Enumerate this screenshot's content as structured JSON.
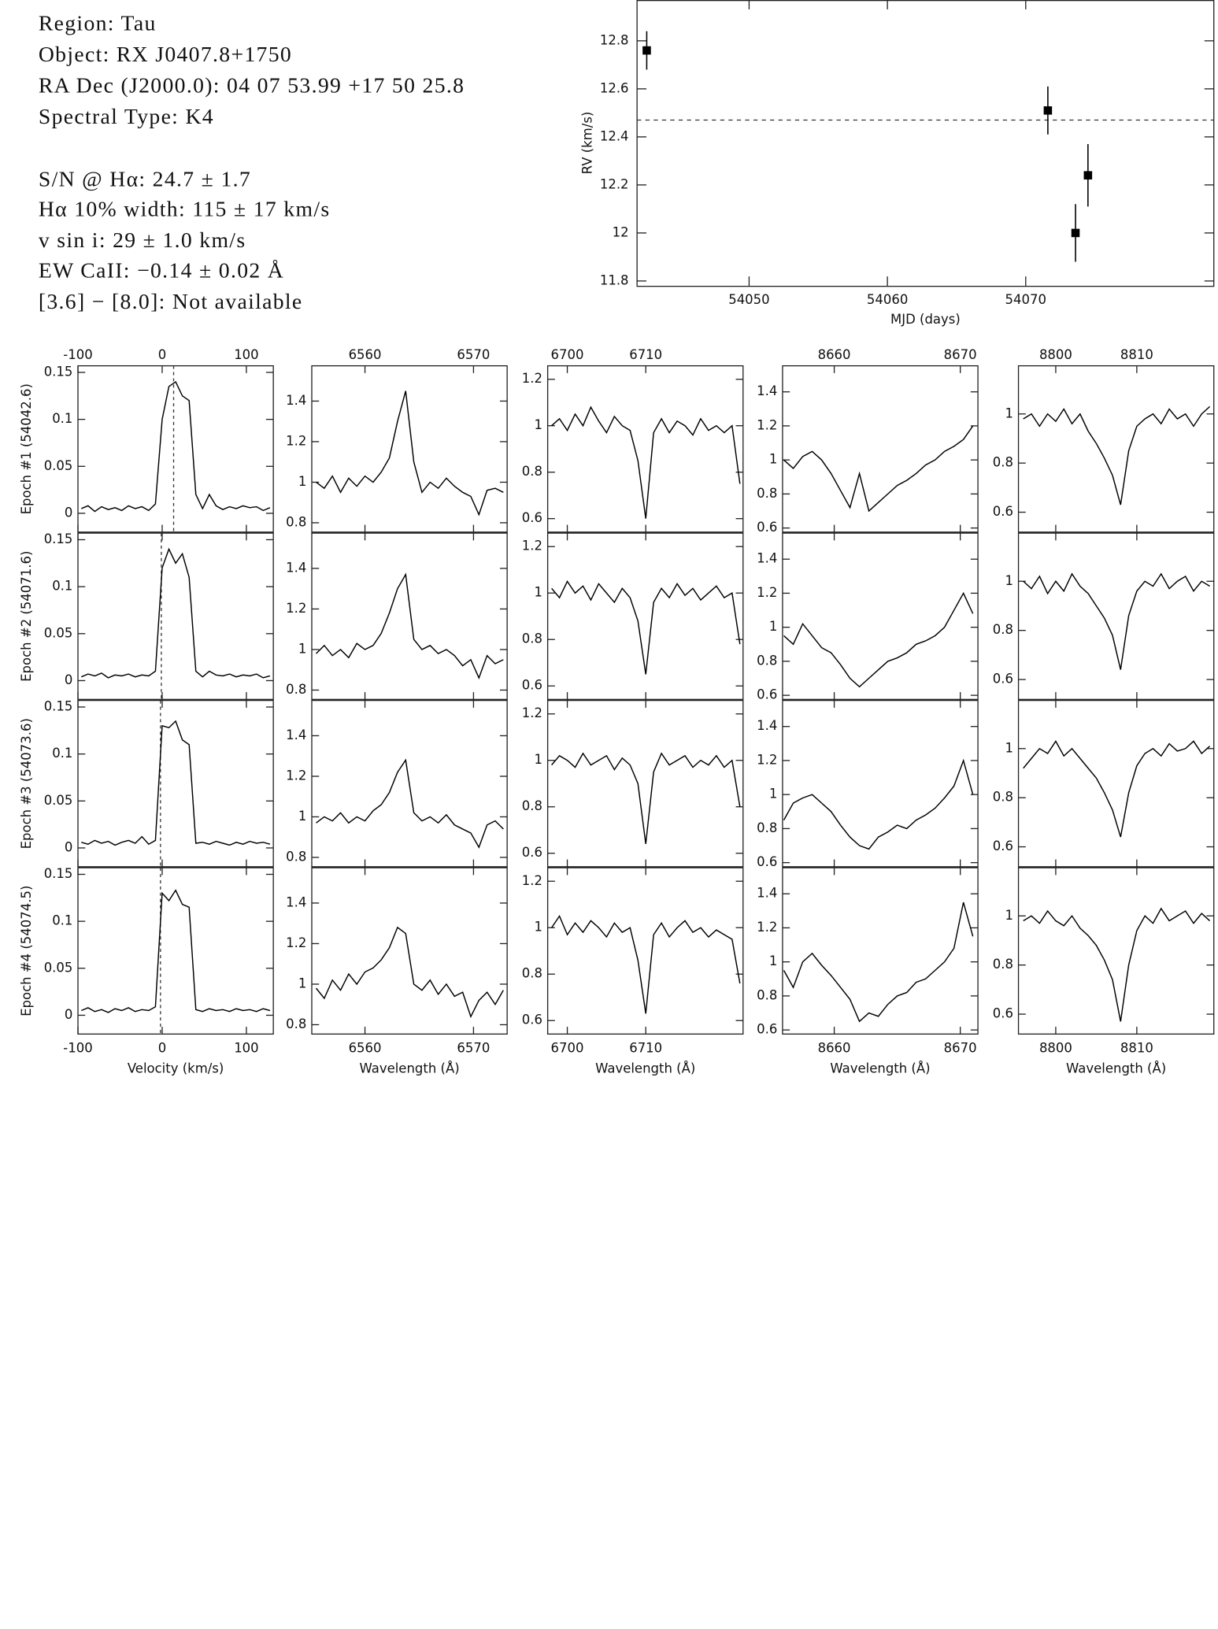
{
  "info": {
    "lines": [
      "Region: Tau",
      "Object: RX J0407.8+1750",
      "RA Dec (J2000.0): 04 07 53.99 +17 50 25.8",
      "Spectral Type: K4",
      "S/N @ Hα: 24.7 ± 1.7",
      "Hα 10% width: 115 ± 17 km/s",
      "v sin i: 29 ± 1.0 km/s",
      "EW CaII: −0.14 ± 0.02 Å",
      "[3.6] − [8.0]: Not available"
    ]
  },
  "chart_data": [
    {
      "type": "scatter",
      "xlabel": "MJD (days)",
      "ylabel": "RV (km/s)",
      "x": [
        54042.6,
        54071.6,
        54073.6,
        54074.5
      ],
      "values": [
        12.76,
        12.51,
        12.0,
        12.24
      ],
      "errors": [
        0.08,
        0.1,
        0.12,
        0.13
      ],
      "reference_line": 12.47,
      "color": "#000000",
      "xlim": [
        54041.9,
        54083.6
      ],
      "xticks": [
        54050,
        54060,
        54070
      ],
      "ylim": [
        11.78,
        12.97
      ],
      "yticks": [
        11.8,
        12,
        12.2,
        12.4,
        12.6,
        12.8
      ]
    },
    {
      "type": "spectra",
      "color": "#000000",
      "columns": [
        {
          "xlabel": "Velocity (km/s)",
          "xlim": [
            -100,
            132
          ],
          "xticks": [
            -100,
            0,
            100
          ],
          "ylim": [
            -0.02,
            0.157
          ],
          "yticks": [
            0,
            0.05,
            0.1,
            0.15
          ],
          "x": [
            -96,
            -88,
            -80,
            -72,
            -64,
            -56,
            -48,
            -40,
            -32,
            -24,
            -16,
            -8,
            0,
            8,
            16,
            24,
            32,
            40,
            48,
            56,
            64,
            72,
            80,
            88,
            96,
            104,
            112,
            120,
            128
          ]
        },
        {
          "xlabel": "Wavelength (Å)",
          "xlim": [
            6555.1,
            6573.1
          ],
          "xticks": [
            6560,
            6570
          ],
          "ylim": [
            0.754,
            1.574
          ],
          "yticks": [
            0.8,
            1,
            1.2,
            1.4
          ],
          "x": [
            6555.5,
            6556.25,
            6557,
            6557.75,
            6558.5,
            6559.25,
            6560,
            6560.75,
            6561.5,
            6562.25,
            6563,
            6563.75,
            6564.5,
            6565.25,
            6566,
            6566.75,
            6567.5,
            6568.25,
            6569,
            6569.75,
            6570.5,
            6571.25,
            6572,
            6572.75
          ]
        },
        {
          "xlabel": "Wavelength (Å)",
          "xlim": [
            6697.5,
            6722.4
          ],
          "xticks": [
            6700,
            6710
          ],
          "ylim": [
            0.542,
            1.258
          ],
          "yticks": [
            0.6,
            0.8,
            1,
            1.2
          ],
          "x": [
            6698,
            6699,
            6700,
            6701,
            6702,
            6703,
            6704,
            6705,
            6706,
            6707,
            6708,
            6709,
            6710,
            6711,
            6712,
            6713,
            6714,
            6715,
            6716,
            6717,
            6718,
            6719,
            6720,
            6721,
            6722
          ]
        },
        {
          "xlabel": "Wavelength (Å)",
          "xlim": [
            8655.9,
            8671.4
          ],
          "xticks": [
            8660,
            8670
          ],
          "ylim": [
            0.576,
            1.553
          ],
          "yticks": [
            0.6,
            0.8,
            1,
            1.2,
            1.4
          ],
          "x": [
            8656,
            8656.75,
            8657.5,
            8658.25,
            8659,
            8659.75,
            8660.5,
            8661.25,
            8662,
            8662.75,
            8663.5,
            8664.25,
            8665,
            8665.75,
            8666.5,
            8667.25,
            8668,
            8668.75,
            8669.5,
            8670.25,
            8671
          ]
        },
        {
          "xlabel": "Wavelength (Å)",
          "xlim": [
            8795.4,
            8819.5
          ],
          "xticks": [
            8800,
            8810
          ],
          "ylim": [
            0.519,
            1.196
          ],
          "yticks": [
            0.6,
            0.8,
            1
          ],
          "x": [
            8796,
            8797,
            8798,
            8799,
            8800,
            8801,
            8802,
            8803,
            8804,
            8805,
            8806,
            8807,
            8808,
            8809,
            8810,
            8811,
            8812,
            8813,
            8814,
            8815,
            8816,
            8817,
            8818,
            8819
          ]
        }
      ],
      "rows": [
        {
          "label": "Epoch #1 (54042.6)",
          "marker_x": 13.6,
          "series": [
            [
              0.005,
              0.008,
              0.002,
              0.007,
              0.004,
              0.006,
              0.003,
              0.008,
              0.005,
              0.007,
              0.003,
              0.01,
              0.1,
              0.135,
              0.14,
              0.125,
              0.12,
              0.02,
              0.005,
              0.02,
              0.008,
              0.004,
              0.007,
              0.005,
              0.008,
              0.006,
              0.007,
              0.003,
              0.006
            ],
            [
              1.0,
              0.97,
              1.03,
              0.95,
              1.02,
              0.98,
              1.03,
              1.0,
              1.05,
              1.12,
              1.3,
              1.45,
              1.1,
              0.95,
              1.0,
              0.97,
              1.02,
              0.98,
              0.95,
              0.93,
              0.84,
              0.96,
              0.97,
              0.95
            ],
            [
              1.0,
              1.03,
              0.98,
              1.05,
              1.0,
              1.08,
              1.02,
              0.97,
              1.04,
              1.0,
              0.98,
              0.85,
              0.6,
              0.97,
              1.03,
              0.97,
              1.02,
              1.0,
              0.96,
              1.03,
              0.98,
              1.0,
              0.97,
              1.0,
              0.75
            ],
            [
              1.0,
              0.95,
              1.02,
              1.05,
              1.0,
              0.92,
              0.82,
              0.72,
              0.92,
              0.7,
              0.75,
              0.8,
              0.85,
              0.88,
              0.92,
              0.97,
              1.0,
              1.05,
              1.08,
              1.12,
              1.2
            ],
            [
              0.98,
              1.0,
              0.95,
              1.0,
              0.97,
              1.02,
              0.96,
              1.0,
              0.93,
              0.88,
              0.82,
              0.75,
              0.63,
              0.85,
              0.95,
              0.98,
              1.0,
              0.96,
              1.02,
              0.98,
              1.0,
              0.95,
              1.0,
              1.03
            ]
          ]
        },
        {
          "label": "Epoch #2 (54071.6)",
          "marker_x": -1,
          "series": [
            [
              0.004,
              0.007,
              0.005,
              0.008,
              0.003,
              0.006,
              0.005,
              0.007,
              0.004,
              0.006,
              0.005,
              0.01,
              0.12,
              0.14,
              0.125,
              0.135,
              0.11,
              0.01,
              0.004,
              0.01,
              0.006,
              0.005,
              0.007,
              0.004,
              0.006,
              0.005,
              0.007,
              0.003,
              0.005
            ],
            [
              0.98,
              1.02,
              0.97,
              1.0,
              0.96,
              1.03,
              1.0,
              1.02,
              1.08,
              1.18,
              1.3,
              1.37,
              1.05,
              1.0,
              1.02,
              0.98,
              1.0,
              0.97,
              0.92,
              0.95,
              0.86,
              0.97,
              0.93,
              0.95
            ],
            [
              1.02,
              0.98,
              1.05,
              1.0,
              1.03,
              0.97,
              1.04,
              1.0,
              0.96,
              1.02,
              0.98,
              0.88,
              0.65,
              0.96,
              1.02,
              0.98,
              1.04,
              0.99,
              1.02,
              0.97,
              1.0,
              1.03,
              0.98,
              1.0,
              0.78
            ],
            [
              0.95,
              0.9,
              1.02,
              0.95,
              0.88,
              0.85,
              0.78,
              0.7,
              0.65,
              0.7,
              0.75,
              0.8,
              0.82,
              0.85,
              0.9,
              0.92,
              0.95,
              1.0,
              1.1,
              1.2,
              1.08
            ],
            [
              1.0,
              0.97,
              1.02,
              0.95,
              1.0,
              0.96,
              1.03,
              0.98,
              0.95,
              0.9,
              0.85,
              0.78,
              0.64,
              0.86,
              0.96,
              1.0,
              0.98,
              1.03,
              0.97,
              1.0,
              1.02,
              0.96,
              1.0,
              0.98
            ]
          ]
        },
        {
          "label": "Epoch #3 (54073.6)",
          "marker_x": -2,
          "series": [
            [
              0.006,
              0.004,
              0.008,
              0.005,
              0.007,
              0.003,
              0.006,
              0.008,
              0.005,
              0.012,
              0.004,
              0.008,
              0.13,
              0.128,
              0.135,
              0.115,
              0.11,
              0.005,
              0.006,
              0.004,
              0.007,
              0.005,
              0.003,
              0.006,
              0.004,
              0.007,
              0.005,
              0.006,
              0.004
            ],
            [
              0.97,
              1.0,
              0.98,
              1.02,
              0.97,
              1.0,
              0.98,
              1.03,
              1.06,
              1.12,
              1.22,
              1.28,
              1.02,
              0.98,
              1.0,
              0.97,
              1.01,
              0.96,
              0.94,
              0.92,
              0.85,
              0.96,
              0.98,
              0.94
            ],
            [
              0.98,
              1.02,
              1.0,
              0.97,
              1.03,
              0.98,
              1.0,
              1.02,
              0.96,
              1.01,
              0.98,
              0.9,
              0.64,
              0.95,
              1.03,
              0.98,
              1.0,
              1.02,
              0.97,
              1.0,
              0.98,
              1.02,
              0.97,
              1.0,
              0.8
            ],
            [
              0.85,
              0.95,
              0.98,
              1.0,
              0.95,
              0.9,
              0.82,
              0.75,
              0.7,
              0.68,
              0.75,
              0.78,
              0.82,
              0.8,
              0.85,
              0.88,
              0.92,
              0.98,
              1.05,
              1.2,
              1.0
            ],
            [
              0.92,
              0.96,
              1.0,
              0.98,
              1.03,
              0.97,
              1.0,
              0.96,
              0.92,
              0.88,
              0.82,
              0.75,
              0.64,
              0.82,
              0.93,
              0.98,
              1.0,
              0.97,
              1.02,
              0.99,
              1.0,
              1.03,
              0.98,
              1.01
            ]
          ]
        },
        {
          "label": "Epoch #4 (54074.5)",
          "marker_x": -2,
          "series": [
            [
              0.005,
              0.008,
              0.004,
              0.006,
              0.003,
              0.007,
              0.005,
              0.008,
              0.004,
              0.006,
              0.005,
              0.009,
              0.13,
              0.122,
              0.133,
              0.118,
              0.115,
              0.006,
              0.004,
              0.007,
              0.005,
              0.006,
              0.004,
              0.007,
              0.005,
              0.006,
              0.004,
              0.007,
              0.005
            ],
            [
              0.98,
              0.93,
              1.02,
              0.97,
              1.05,
              1.0,
              1.06,
              1.08,
              1.12,
              1.18,
              1.28,
              1.25,
              1.0,
              0.97,
              1.02,
              0.95,
              1.0,
              0.94,
              0.96,
              0.84,
              0.92,
              0.96,
              0.9,
              0.97
            ],
            [
              1.0,
              1.05,
              0.97,
              1.02,
              0.98,
              1.03,
              1.0,
              0.96,
              1.02,
              0.98,
              1.0,
              0.86,
              0.63,
              0.97,
              1.02,
              0.96,
              1.0,
              1.03,
              0.98,
              1.0,
              0.96,
              0.99,
              0.97,
              0.95,
              0.76
            ],
            [
              0.95,
              0.85,
              1.0,
              1.05,
              0.98,
              0.92,
              0.85,
              0.78,
              0.65,
              0.7,
              0.68,
              0.75,
              0.8,
              0.82,
              0.88,
              0.9,
              0.95,
              1.0,
              1.08,
              1.35,
              1.15
            ],
            [
              0.98,
              1.0,
              0.97,
              1.02,
              0.98,
              0.96,
              1.0,
              0.95,
              0.92,
              0.88,
              0.82,
              0.74,
              0.57,
              0.8,
              0.94,
              1.0,
              0.97,
              1.03,
              0.98,
              1.0,
              1.02,
              0.97,
              1.01,
              0.98
            ]
          ]
        }
      ]
    }
  ]
}
